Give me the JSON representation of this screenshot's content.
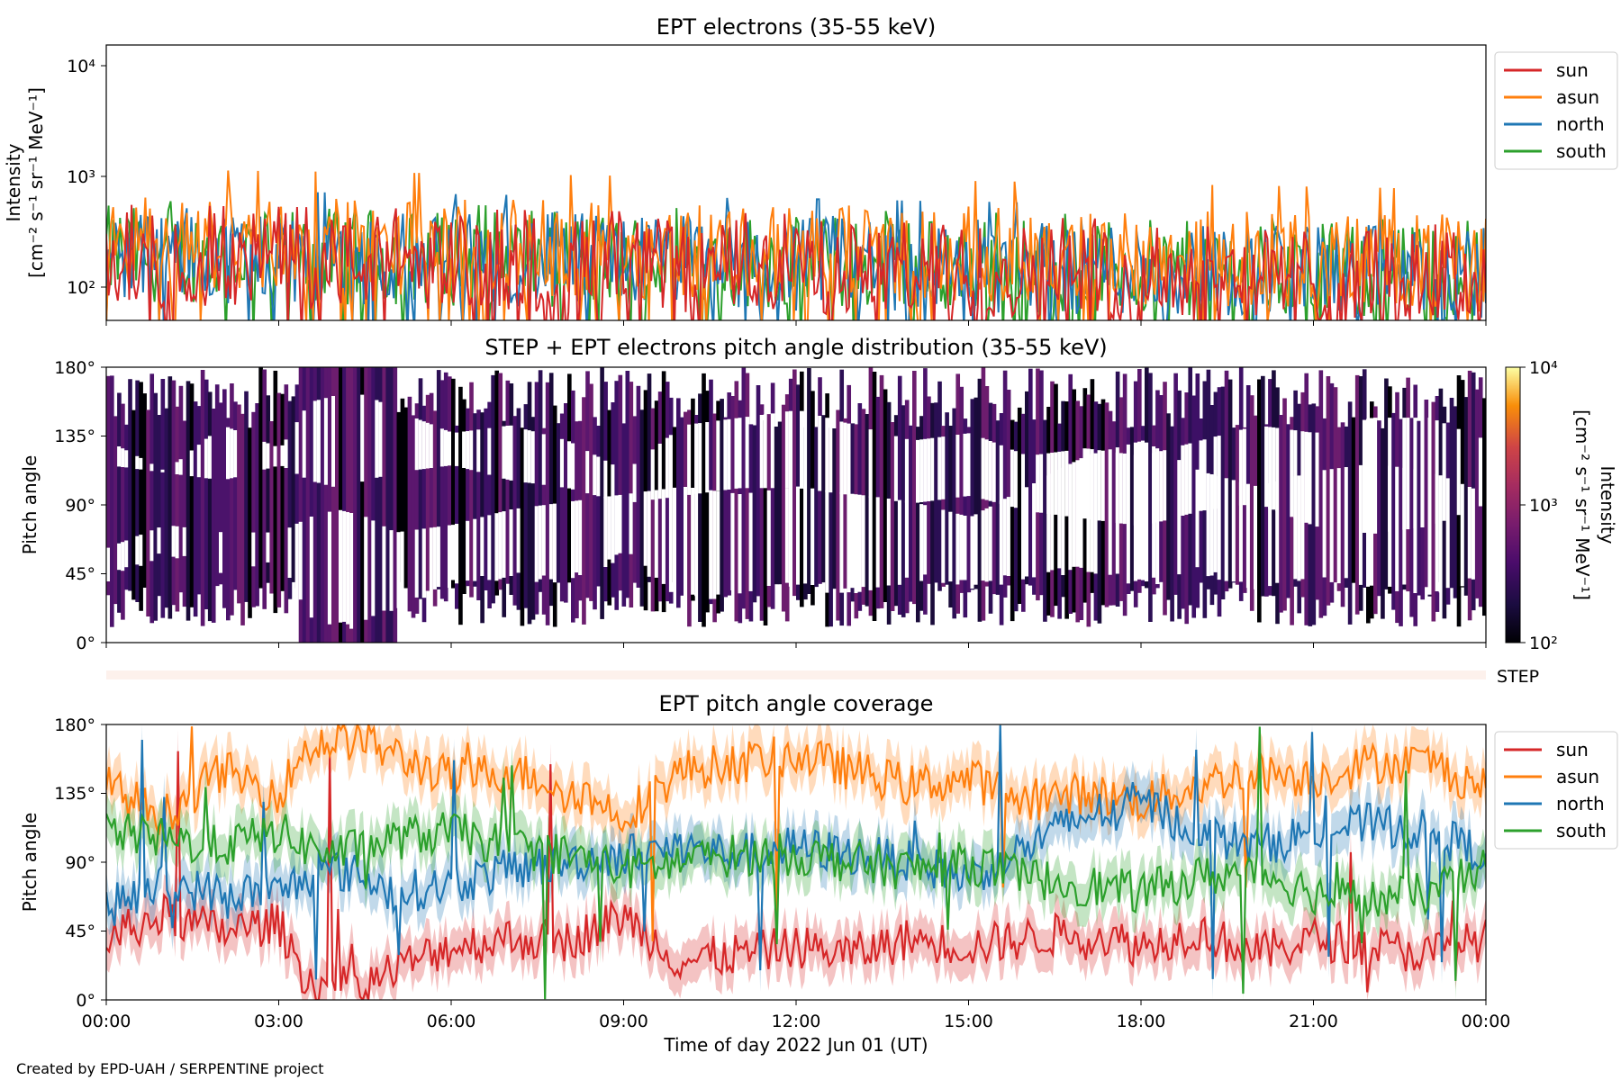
{
  "footer": "Created by EPD-UAH / SERPENTINE project",
  "xaxis": {
    "label": "Time of day 2022 Jun 01 (UT)",
    "ticks": [
      "00:00",
      "03:00",
      "06:00",
      "09:00",
      "12:00",
      "15:00",
      "18:00",
      "21:00",
      "00:00"
    ]
  },
  "colors": {
    "sun": "#d62728",
    "asun": "#ff7f0e",
    "north": "#1f77b4",
    "south": "#2ca02c"
  },
  "chart_data": [
    {
      "type": "line",
      "title": "EPT electrons (35-55 keV)",
      "ylabel_line1": "Intensity",
      "ylabel_line2": "[cm⁻² s⁻¹ sr⁻¹ MeV⁻¹]",
      "yscale": "log",
      "ylim": [
        50,
        15000
      ],
      "yticks": [
        "10²",
        "10³",
        "10⁴"
      ],
      "xlim_hours": [
        0,
        24
      ],
      "legend_position": "upper-right-outside",
      "series": [
        {
          "name": "sun",
          "baseline": 180,
          "range": [
            60,
            550
          ]
        },
        {
          "name": "asun",
          "baseline": 250,
          "range": [
            80,
            1150
          ]
        },
        {
          "name": "north",
          "baseline": 200,
          "range": [
            70,
            750
          ]
        },
        {
          "name": "south",
          "baseline": 200,
          "range": [
            60,
            600
          ]
        }
      ]
    },
    {
      "type": "heatmap",
      "title": "STEP + EPT electrons pitch angle distribution (35-55 keV)",
      "ylabel": "Pitch angle",
      "yticks": [
        "0°",
        "45°",
        "90°",
        "135°",
        "180°"
      ],
      "ylim": [
        0,
        180
      ],
      "colorbar": {
        "label_line1": "Intensity",
        "label_line2": "[cm⁻² s⁻¹ sr⁻¹ MeV⁻¹]",
        "ticks": [
          "10²",
          "10³",
          "10⁴"
        ],
        "scale": "log",
        "range": [
          100,
          10000
        ],
        "colormap": "inferno"
      },
      "step_label": "STEP"
    },
    {
      "type": "line",
      "title": "EPT pitch angle coverage",
      "ylabel": "Pitch angle",
      "yticks": [
        "0°",
        "45°",
        "90°",
        "135°",
        "180°"
      ],
      "ylim": [
        0,
        180
      ],
      "xlim_hours": [
        0,
        24
      ],
      "legend_position": "upper-right-outside",
      "series": [
        {
          "name": "sun",
          "x_hours": [
            0,
            1,
            2,
            3,
            3.5,
            4,
            4.5,
            5,
            6,
            7,
            8,
            9,
            10,
            11,
            12,
            13,
            14,
            15,
            16,
            17,
            18,
            19,
            20,
            21,
            22,
            23,
            24
          ],
          "values": [
            40,
            55,
            45,
            50,
            12,
            8,
            10,
            20,
            35,
            40,
            38,
            55,
            25,
            30,
            35,
            30,
            40,
            35,
            40,
            45,
            35,
            45,
            30,
            40,
            35,
            30,
            40
          ]
        },
        {
          "name": "asun",
          "x_hours": [
            0,
            1,
            2,
            3,
            3.5,
            4,
            4.5,
            5,
            6,
            7,
            8,
            9,
            10,
            11,
            12,
            13,
            14,
            15,
            16,
            17,
            18,
            19,
            20,
            21,
            22,
            23,
            24
          ],
          "values": [
            140,
            120,
            150,
            135,
            165,
            170,
            170,
            160,
            145,
            150,
            140,
            120,
            150,
            155,
            160,
            150,
            140,
            145,
            130,
            135,
            130,
            140,
            150,
            145,
            155,
            155,
            140
          ]
        },
        {
          "name": "north",
          "x_hours": [
            0,
            1,
            2,
            3,
            3.5,
            4,
            4.5,
            5,
            6,
            7,
            8,
            9,
            10,
            11,
            12,
            13,
            14,
            15,
            16,
            17,
            18,
            19,
            20,
            21,
            22,
            23,
            24
          ],
          "values": [
            60,
            75,
            70,
            70,
            80,
            85,
            80,
            70,
            75,
            85,
            90,
            95,
            100,
            95,
            100,
            95,
            90,
            80,
            100,
            120,
            130,
            110,
            100,
            110,
            115,
            110,
            95
          ]
        },
        {
          "name": "south",
          "x_hours": [
            0,
            1,
            2,
            3,
            3.5,
            4,
            4.5,
            5,
            6,
            7,
            8,
            9,
            10,
            11,
            12,
            13,
            14,
            15,
            16,
            17,
            18,
            19,
            20,
            21,
            22,
            23,
            24
          ],
          "values": [
            110,
            105,
            100,
            110,
            100,
            95,
            100,
            105,
            110,
            100,
            95,
            85,
            90,
            95,
            95,
            90,
            85,
            90,
            80,
            75,
            70,
            80,
            85,
            70,
            65,
            70,
            85
          ]
        }
      ]
    }
  ]
}
